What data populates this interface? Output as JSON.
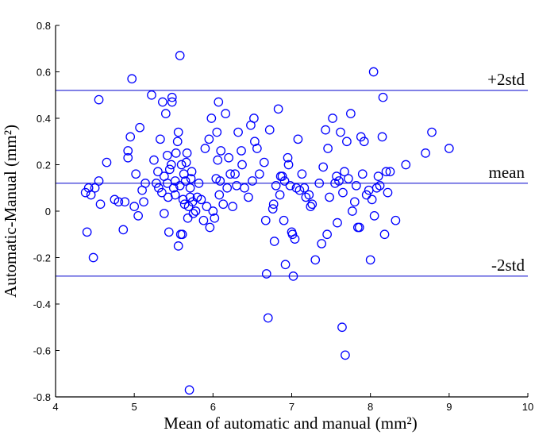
{
  "chart_data": {
    "type": "scatter",
    "title": "",
    "xlabel": "Mean of automatic and manual (mm²)",
    "ylabel": "Automatic-Manual (mm²)",
    "xlim": [
      4,
      10
    ],
    "ylim": [
      -0.8,
      0.8
    ],
    "xticks": [
      "4",
      "5",
      "6",
      "7",
      "8",
      "9",
      "10"
    ],
    "yticks": [
      "-0.8",
      "-0.6",
      "-0.4",
      "-0.2",
      "0",
      "0.2",
      "0.4",
      "0.6",
      "0.8"
    ],
    "reference_lines": [
      {
        "label": "+2std",
        "y": 0.52
      },
      {
        "label": "mean",
        "y": 0.12
      },
      {
        "label": "-2std",
        "y": -0.28
      }
    ],
    "marker_color": "#0000ff",
    "line_color": "#0000cc",
    "points": [
      [
        4.38,
        0.08
      ],
      [
        4.42,
        0.1
      ],
      [
        4.45,
        0.07
      ],
      [
        4.4,
        -0.09
      ],
      [
        4.48,
        -0.2
      ],
      [
        4.5,
        0.1
      ],
      [
        4.55,
        0.13
      ],
      [
        4.57,
        0.03
      ],
      [
        4.55,
        0.48
      ],
      [
        4.65,
        0.21
      ],
      [
        4.75,
        0.05
      ],
      [
        4.8,
        0.04
      ],
      [
        4.86,
        -0.08
      ],
      [
        4.88,
        0.04
      ],
      [
        4.92,
        0.23
      ],
      [
        4.92,
        0.26
      ],
      [
        4.95,
        0.32
      ],
      [
        4.97,
        0.57
      ],
      [
        5.0,
        0.02
      ],
      [
        5.02,
        0.16
      ],
      [
        5.05,
        -0.02
      ],
      [
        5.07,
        0.36
      ],
      [
        5.1,
        0.09
      ],
      [
        5.12,
        0.04
      ],
      [
        5.14,
        0.12
      ],
      [
        5.22,
        0.5
      ],
      [
        5.25,
        0.22
      ],
      [
        5.28,
        0.12
      ],
      [
        5.3,
        0.17
      ],
      [
        5.31,
        0.1
      ],
      [
        5.33,
        0.31
      ],
      [
        5.35,
        0.08
      ],
      [
        5.36,
        0.47
      ],
      [
        5.38,
        0.15
      ],
      [
        5.38,
        -0.01
      ],
      [
        5.4,
        0.42
      ],
      [
        5.42,
        0.24
      ],
      [
        5.42,
        0.12
      ],
      [
        5.43,
        0.06
      ],
      [
        5.44,
        -0.09
      ],
      [
        5.45,
        0.18
      ],
      [
        5.47,
        0.2
      ],
      [
        5.48,
        0.49
      ],
      [
        5.48,
        0.47
      ],
      [
        5.5,
        0.1
      ],
      [
        5.52,
        0.13
      ],
      [
        5.52,
        0.07
      ],
      [
        5.53,
        0.25
      ],
      [
        5.55,
        0.3
      ],
      [
        5.56,
        0.34
      ],
      [
        5.56,
        -0.15
      ],
      [
        5.58,
        0.67
      ],
      [
        5.58,
        0.11
      ],
      [
        5.59,
        -0.1
      ],
      [
        5.6,
        0.2
      ],
      [
        5.61,
        -0.1
      ],
      [
        5.62,
        0.05
      ],
      [
        5.63,
        0.16
      ],
      [
        5.64,
        0.03
      ],
      [
        5.65,
        0.13
      ],
      [
        5.66,
        0.21
      ],
      [
        5.67,
        0.25
      ],
      [
        5.68,
        -0.03
      ],
      [
        5.69,
        0.02
      ],
      [
        5.7,
        -0.77
      ],
      [
        5.71,
        0.1
      ],
      [
        5.71,
        0.06
      ],
      [
        5.72,
        0.14
      ],
      [
        5.73,
        0.17
      ],
      [
        5.74,
        0.04
      ],
      [
        5.75,
        -0.01
      ],
      [
        5.78,
        0.0
      ],
      [
        5.8,
        0.06
      ],
      [
        5.82,
        0.12
      ],
      [
        5.85,
        0.05
      ],
      [
        5.88,
        -0.04
      ],
      [
        5.9,
        0.27
      ],
      [
        5.92,
        0.02
      ],
      [
        5.95,
        0.31
      ],
      [
        5.96,
        -0.07
      ],
      [
        5.98,
        0.4
      ],
      [
        6.0,
        0.0
      ],
      [
        6.02,
        -0.03
      ],
      [
        6.04,
        0.14
      ],
      [
        6.05,
        0.34
      ],
      [
        6.06,
        0.22
      ],
      [
        6.07,
        0.47
      ],
      [
        6.08,
        0.07
      ],
      [
        6.09,
        0.13
      ],
      [
        6.1,
        0.26
      ],
      [
        6.13,
        0.03
      ],
      [
        6.16,
        0.42
      ],
      [
        6.18,
        0.1
      ],
      [
        6.2,
        0.23
      ],
      [
        6.22,
        0.16
      ],
      [
        6.25,
        0.02
      ],
      [
        6.28,
        0.16
      ],
      [
        6.3,
        0.11
      ],
      [
        6.32,
        0.34
      ],
      [
        6.36,
        0.26
      ],
      [
        6.37,
        0.2
      ],
      [
        6.4,
        0.1
      ],
      [
        6.45,
        0.06
      ],
      [
        6.48,
        0.37
      ],
      [
        6.5,
        0.13
      ],
      [
        6.52,
        0.4
      ],
      [
        6.53,
        0.3
      ],
      [
        6.56,
        0.27
      ],
      [
        6.59,
        0.16
      ],
      [
        6.65,
        0.21
      ],
      [
        6.67,
        -0.04
      ],
      [
        6.68,
        -0.27
      ],
      [
        6.7,
        -0.46
      ],
      [
        6.72,
        0.35
      ],
      [
        6.76,
        0.01
      ],
      [
        6.77,
        0.03
      ],
      [
        6.78,
        -0.13
      ],
      [
        6.8,
        0.11
      ],
      [
        6.83,
        0.44
      ],
      [
        6.85,
        0.07
      ],
      [
        6.86,
        0.15
      ],
      [
        6.88,
        0.15
      ],
      [
        6.9,
        -0.04
      ],
      [
        6.91,
        0.13
      ],
      [
        6.92,
        -0.23
      ],
      [
        6.95,
        0.23
      ],
      [
        6.96,
        0.2
      ],
      [
        6.98,
        0.11
      ],
      [
        7.0,
        -0.09
      ],
      [
        7.01,
        -0.1
      ],
      [
        7.02,
        -0.28
      ],
      [
        7.04,
        -0.12
      ],
      [
        7.06,
        0.1
      ],
      [
        7.08,
        0.31
      ],
      [
        7.1,
        0.09
      ],
      [
        7.13,
        0.16
      ],
      [
        7.16,
        0.1
      ],
      [
        7.18,
        0.06
      ],
      [
        7.22,
        0.07
      ],
      [
        7.24,
        0.02
      ],
      [
        7.26,
        0.03
      ],
      [
        7.3,
        -0.21
      ],
      [
        7.35,
        0.12
      ],
      [
        7.38,
        -0.14
      ],
      [
        7.4,
        0.19
      ],
      [
        7.43,
        0.35
      ],
      [
        7.45,
        -0.1
      ],
      [
        7.46,
        0.27
      ],
      [
        7.48,
        0.06
      ],
      [
        7.52,
        0.4
      ],
      [
        7.55,
        0.12
      ],
      [
        7.57,
        0.15
      ],
      [
        7.58,
        -0.05
      ],
      [
        7.6,
        0.13
      ],
      [
        7.62,
        0.34
      ],
      [
        7.64,
        -0.5
      ],
      [
        7.65,
        0.08
      ],
      [
        7.67,
        0.17
      ],
      [
        7.68,
        -0.62
      ],
      [
        7.7,
        0.3
      ],
      [
        7.72,
        0.14
      ],
      [
        7.75,
        0.42
      ],
      [
        7.77,
        0.0
      ],
      [
        7.8,
        0.04
      ],
      [
        7.82,
        0.11
      ],
      [
        7.84,
        -0.07
      ],
      [
        7.86,
        -0.07
      ],
      [
        7.88,
        0.32
      ],
      [
        7.9,
        0.16
      ],
      [
        7.92,
        0.3
      ],
      [
        7.95,
        0.07
      ],
      [
        7.98,
        0.09
      ],
      [
        8.0,
        -0.21
      ],
      [
        8.02,
        0.05
      ],
      [
        8.04,
        0.6
      ],
      [
        8.05,
        -0.02
      ],
      [
        8.08,
        0.1
      ],
      [
        8.1,
        0.15
      ],
      [
        8.12,
        0.11
      ],
      [
        8.15,
        0.32
      ],
      [
        8.16,
        0.49
      ],
      [
        8.18,
        -0.1
      ],
      [
        8.2,
        0.17
      ],
      [
        8.22,
        0.08
      ],
      [
        8.25,
        0.17
      ],
      [
        8.32,
        -0.04
      ],
      [
        8.45,
        0.2
      ],
      [
        8.7,
        0.25
      ],
      [
        8.78,
        0.34
      ],
      [
        9.0,
        0.27
      ]
    ]
  }
}
